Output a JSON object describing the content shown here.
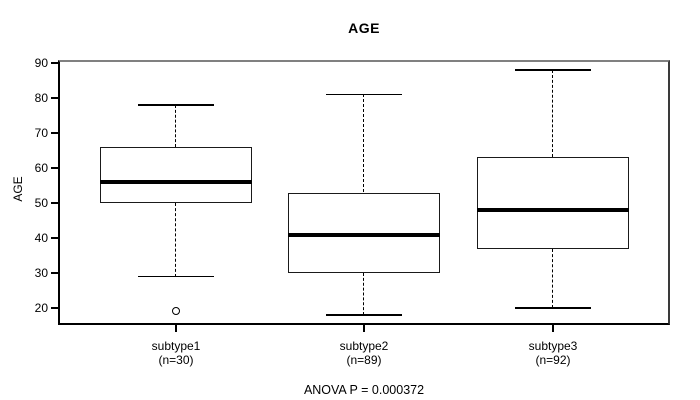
{
  "title": "AGE",
  "y_axis": {
    "label": "AGE",
    "tick_labels": [
      "20",
      "30",
      "40",
      "50",
      "60",
      "70",
      "80",
      "90"
    ]
  },
  "footer": {
    "anova_text": "ANOVA P = 0.000372"
  },
  "chart_data": {
    "type": "boxplot",
    "title": "AGE",
    "ylabel": "AGE",
    "ylim": [
      15.2,
      90.8
    ],
    "yticks": [
      20,
      30,
      40,
      50,
      60,
      70,
      80,
      90
    ],
    "grid": false,
    "annotation": "ANOVA P = 0.000372",
    "groups": [
      {
        "label": "subtype1",
        "sublabel": "(n=30)",
        "whisker_low": 29,
        "q1": 50,
        "median": 56,
        "q3": 66,
        "whisker_high": 78,
        "outliers": [
          19
        ]
      },
      {
        "label": "subtype2",
        "sublabel": "(n=89)",
        "whisker_low": 18,
        "q1": 30,
        "median": 41,
        "q3": 53,
        "whisker_high": 81,
        "outliers": []
      },
      {
        "label": "subtype3",
        "sublabel": "(n=92)",
        "whisker_low": 20,
        "q1": 37,
        "median": 48,
        "q3": 63,
        "whisker_high": 88,
        "outliers": []
      }
    ]
  }
}
